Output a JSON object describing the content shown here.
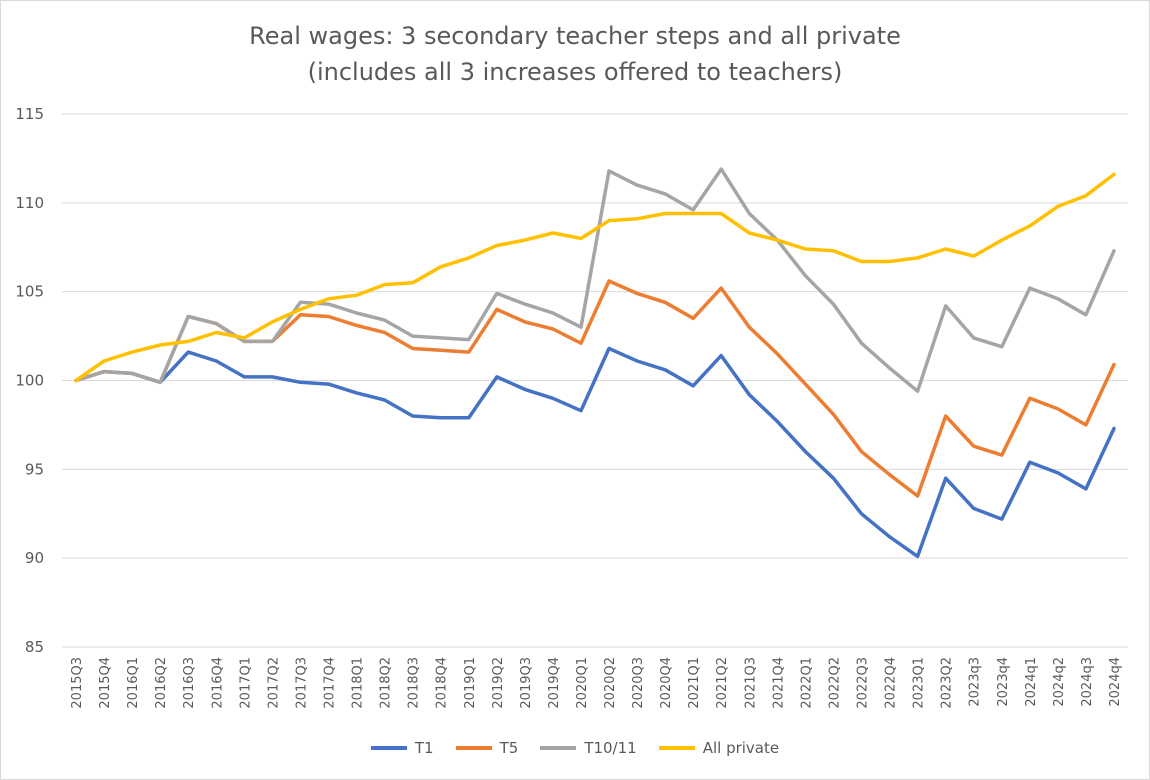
{
  "chart_data": {
    "type": "line",
    "title": "Real wages: 3 secondary teacher steps and all private",
    "subtitle": "(includes all 3 increases offered to teachers)",
    "xlabel": "",
    "ylabel": "",
    "ylim": [
      85,
      115
    ],
    "yticks": [
      85,
      90,
      95,
      100,
      105,
      110,
      115
    ],
    "grid": true,
    "legend_position": "bottom",
    "categories": [
      "2015Q3",
      "2015Q4",
      "2016Q1",
      "2016Q2",
      "2016Q3",
      "2016Q4",
      "2017Q1",
      "2017Q2",
      "2017Q3",
      "2017Q4",
      "2018Q1",
      "2018Q2",
      "2018Q3",
      "2018Q4",
      "2019Q1",
      "2019Q2",
      "2019Q3",
      "2019Q4",
      "2020Q1",
      "2020Q2",
      "2020Q3",
      "2020Q4",
      "2021Q1",
      "2021Q2",
      "2021Q3",
      "2021Q4",
      "2022Q1",
      "2022Q2",
      "2022Q3",
      "2022Q4",
      "2023Q1",
      "2023Q2",
      "2023q3",
      "2023q4",
      "2024q1",
      "2024q2",
      "2024q3",
      "2024q4"
    ],
    "series": [
      {
        "name": "T1",
        "color": "#4472c4",
        "values": [
          100.0,
          100.5,
          100.4,
          99.9,
          101.6,
          101.1,
          100.2,
          100.2,
          99.9,
          99.8,
          99.3,
          98.9,
          98.0,
          97.9,
          97.9,
          100.2,
          99.5,
          99.0,
          98.3,
          101.8,
          101.1,
          100.6,
          99.7,
          101.4,
          99.2,
          97.7,
          96.0,
          94.5,
          92.5,
          91.2,
          90.1,
          94.5,
          92.8,
          92.2,
          95.4,
          94.8,
          93.9,
          97.3
        ]
      },
      {
        "name": "T5",
        "color": "#ed7d31",
        "values": [
          100.0,
          100.5,
          100.4,
          99.9,
          103.6,
          103.2,
          102.2,
          102.2,
          103.7,
          103.6,
          103.1,
          102.7,
          101.8,
          101.7,
          101.6,
          104.0,
          103.3,
          102.9,
          102.1,
          105.6,
          104.9,
          104.4,
          103.5,
          105.2,
          103.0,
          101.5,
          99.8,
          98.1,
          96.0,
          94.7,
          93.5,
          98.0,
          96.3,
          95.8,
          99.0,
          98.4,
          97.5,
          100.9
        ]
      },
      {
        "name": "T10/11",
        "color": "#a5a5a5",
        "values": [
          100.0,
          100.5,
          100.4,
          99.9,
          103.6,
          103.2,
          102.2,
          102.2,
          104.4,
          104.3,
          103.8,
          103.4,
          102.5,
          102.4,
          102.3,
          104.9,
          104.3,
          103.8,
          103.0,
          111.8,
          111.0,
          110.5,
          109.6,
          111.9,
          109.4,
          107.9,
          105.9,
          104.3,
          102.1,
          100.7,
          99.4,
          104.2,
          102.4,
          101.9,
          105.2,
          104.6,
          103.7,
          107.3
        ]
      },
      {
        "name": "All private",
        "color": "#ffc000",
        "values": [
          100.0,
          101.1,
          101.6,
          102.0,
          102.2,
          102.7,
          102.4,
          103.3,
          104.0,
          104.6,
          104.8,
          105.4,
          105.5,
          106.4,
          106.9,
          107.6,
          107.9,
          108.3,
          108.0,
          109.0,
          109.1,
          109.4,
          109.4,
          109.4,
          108.3,
          107.9,
          107.4,
          107.3,
          106.7,
          106.7,
          106.9,
          107.4,
          107.0,
          107.9,
          108.7,
          109.8,
          110.4,
          111.6
        ]
      }
    ]
  }
}
